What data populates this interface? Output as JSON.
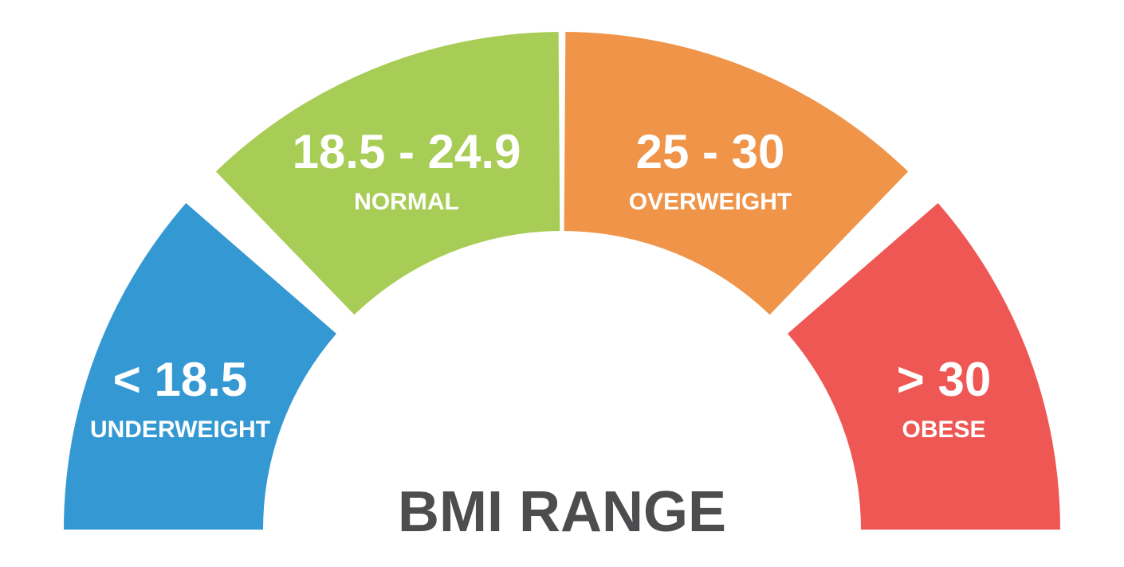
{
  "title": "BMI RANGE",
  "segments": [
    {
      "range": "< 18.5",
      "label": "UNDERWEIGHT",
      "color": "#3498d3"
    },
    {
      "range": "18.5 - 24.9",
      "label": "NORMAL",
      "color": "#a8cd56"
    },
    {
      "range": "25 - 30",
      "label": "OVERWEIGHT",
      "color": "#ef9448"
    },
    {
      "range": "> 30",
      "label": "OBESE",
      "color": "#ee5753"
    }
  ]
}
